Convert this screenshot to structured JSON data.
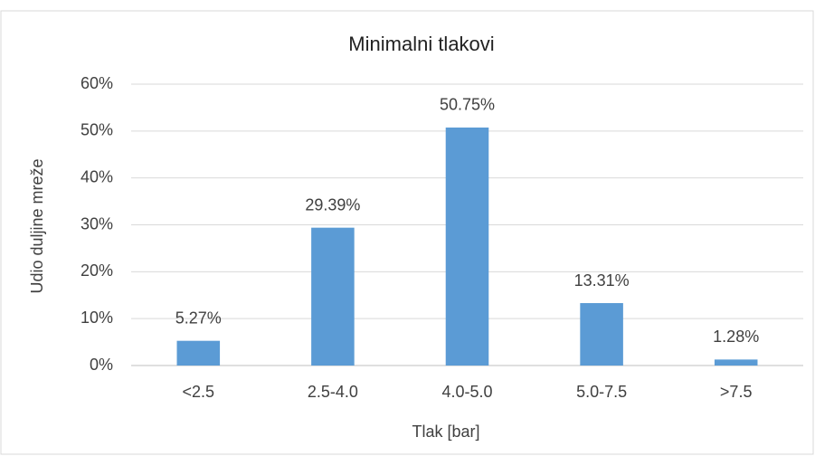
{
  "chart_data": {
    "type": "bar",
    "title": "Minimalni tlakovi",
    "x_label": "Tlak [bar]",
    "y_label": "Udio duljine mreže",
    "categories": [
      "<2.5",
      "2.5-4.0",
      "4.0-5.0",
      "5.0-7.5",
      ">7.5"
    ],
    "values": [
      5.27,
      29.39,
      50.75,
      13.31,
      1.28
    ],
    "value_labels": [
      "5.27%",
      "29.39%",
      "50.75%",
      "13.31%",
      "1.28%"
    ],
    "color": "#5b9bd5",
    "ylim": [
      0,
      60
    ],
    "yticks": [
      {
        "value": 0,
        "label": "0%"
      },
      {
        "value": 10,
        "label": "10%"
      },
      {
        "value": 20,
        "label": "20%"
      },
      {
        "value": 30,
        "label": "30%"
      },
      {
        "value": 40,
        "label": "40%"
      },
      {
        "value": 50,
        "label": "50%"
      },
      {
        "value": 60,
        "label": "60%"
      }
    ],
    "grid": true
  }
}
